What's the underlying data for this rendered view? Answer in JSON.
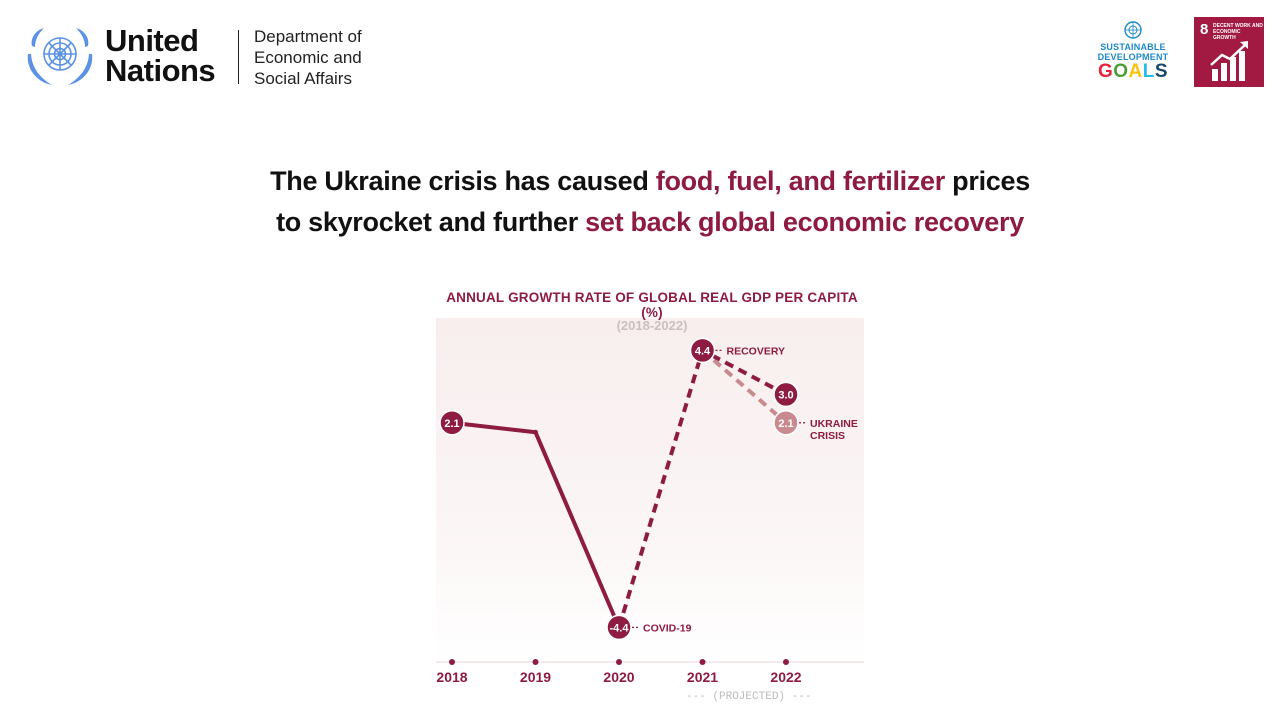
{
  "header": {
    "org_name_line1": "United",
    "org_name_line2": "Nations",
    "dept_line1": "Department of",
    "dept_line2": "Economic and",
    "dept_line3": "Social Affairs",
    "sdg_line1": "SUSTAINABLE",
    "sdg_line2": "DEVELOPMENT",
    "sdg_goals": "GOALS",
    "goal_number": "8",
    "goal_text": "DECENT WORK AND ECONOMIC GROWTH",
    "icons": [
      "un-emblem-icon",
      "sdg-wheel-icon",
      "growth-chart-icon"
    ]
  },
  "headline": {
    "l1_a": "The Ukraine crisis has caused ",
    "l1_b": "food, fuel, and fertilizer",
    "l1_c": " prices",
    "l2_a": "to skyrocket and further ",
    "l2_b": "set back global economic recovery"
  },
  "colors": {
    "accent": "#8e1b42",
    "projected_light": "#c98a8f",
    "un_blue": "#5b92e5",
    "goal8": "#a21942"
  },
  "chart_data": {
    "type": "line",
    "title": "ANNUAL GROWTH RATE OF GLOBAL REAL GDP PER CAPITA (%)",
    "subtitle": "(2018-2022)",
    "categories": [
      "2018",
      "2019",
      "2020",
      "2021",
      "2022"
    ],
    "x_note": "(PROJECTED)",
    "ylim": [
      -5.5,
      6
    ],
    "series": [
      {
        "name": "",
        "style": "solid",
        "values": [
          2.1,
          1.8,
          -4.4,
          null,
          null
        ]
      },
      {
        "name": "RECOVERY",
        "style": "dashed",
        "values": [
          null,
          null,
          -4.4,
          4.4,
          3.0
        ]
      },
      {
        "name": "UKRAINE CRISIS",
        "style": "dashed-light",
        "values": [
          null,
          null,
          null,
          4.4,
          2.1
        ]
      }
    ],
    "data_labels": [
      {
        "x": "2018",
        "y": 2.1,
        "label": "2.1"
      },
      {
        "x": "2020",
        "y": -4.4,
        "label": "-4.4"
      },
      {
        "x": "2021",
        "y": 4.4,
        "label": "4.4"
      },
      {
        "x": "2022",
        "y": 3.0,
        "label": "3.0"
      },
      {
        "x": "2022",
        "y": 2.1,
        "label": "2.1"
      }
    ],
    "annotations": [
      {
        "x": "2020",
        "y": -4.4,
        "text": "COVID-19"
      },
      {
        "x": "2021",
        "y": 4.4,
        "text": "RECOVERY"
      },
      {
        "x": "2022",
        "y": 2.1,
        "text": "UKRAINE CRISIS"
      }
    ],
    "grid": false,
    "legend": "none"
  }
}
